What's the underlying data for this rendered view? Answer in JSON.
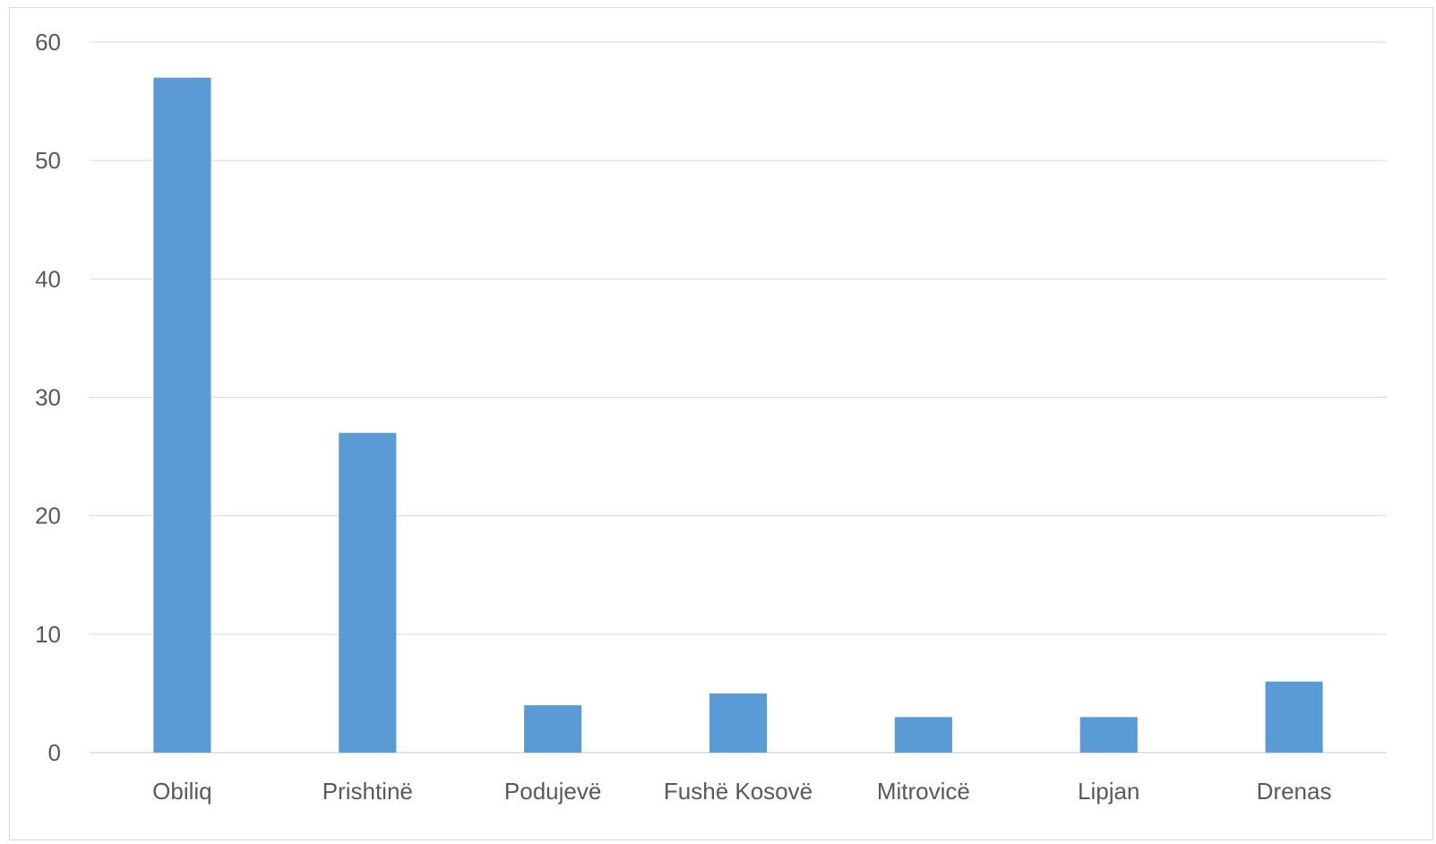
{
  "chart_data": {
    "type": "bar",
    "title": "",
    "xlabel": "",
    "ylabel": "",
    "categories": [
      "Obiliq",
      "Prishtinë",
      "Podujevë",
      "Fushë Kosovë",
      "Mitrovicë",
      "Lipjan",
      "Drenas"
    ],
    "values": [
      57,
      27,
      4,
      5,
      3,
      3,
      6
    ],
    "ylim": [
      0,
      60
    ],
    "yticks": [
      0,
      10,
      20,
      30,
      40,
      50,
      60
    ],
    "ytick_labels": [
      "0",
      "10",
      "20",
      "30",
      "40",
      "50",
      "60"
    ],
    "grid": true,
    "legend": "none",
    "bar_color": "#5B9BD5",
    "grid_color": "#d9d9d9",
    "text_color": "#595959"
  }
}
